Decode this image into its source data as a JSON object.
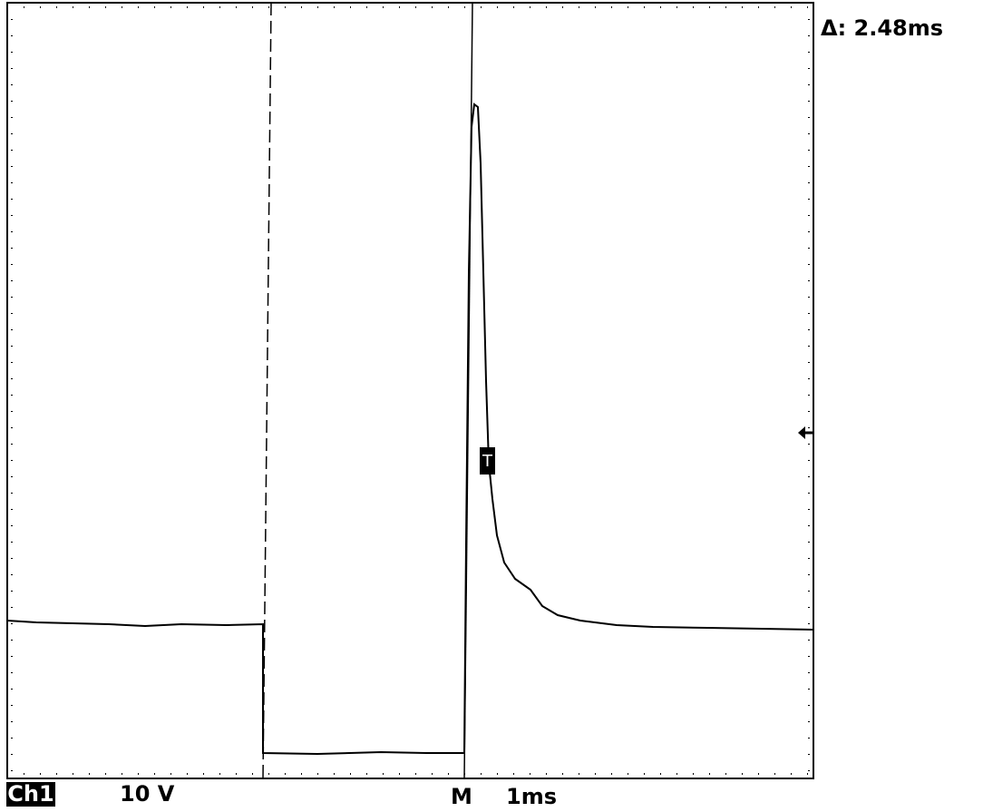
{
  "readout": {
    "delta": "Δ: 2.48ms",
    "trigger_marker": "T"
  },
  "footer": {
    "channel": "Ch1",
    "volts_per_div": "10 V",
    "mode": "M",
    "time_per_div": "1ms"
  }
}
